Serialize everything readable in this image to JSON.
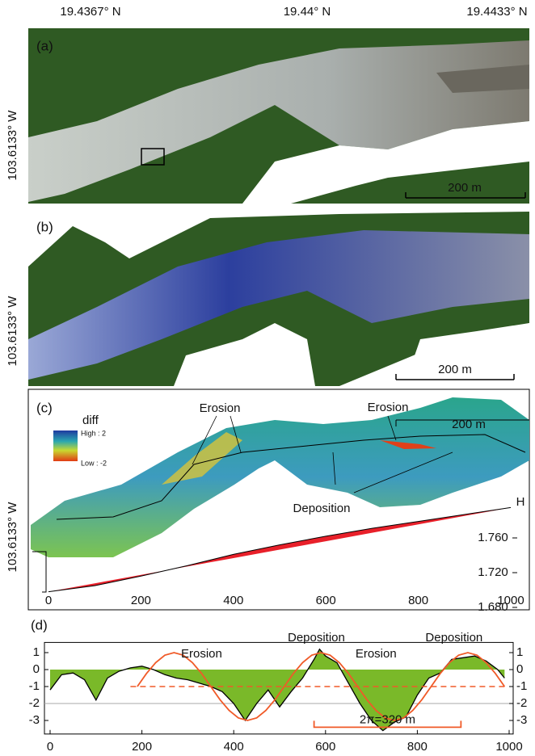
{
  "header": {
    "lat_labels": [
      "19.4367° N",
      "19.44° N",
      "19.4433° N"
    ],
    "lon_label": "103.6133° W"
  },
  "panels": {
    "a": {
      "label": "(a)",
      "scale": "200 m"
    },
    "b": {
      "label": "(b)",
      "scale": "200 m"
    },
    "c": {
      "label": "(c)",
      "scale": "200 m",
      "legend_title": "diff",
      "legend_high": "High : 2",
      "legend_low": "Low : -2",
      "annotations": [
        "Erosion",
        "Erosion",
        "Deposition"
      ],
      "axis_label": "H"
    }
  },
  "chart_data": [
    {
      "type": "line",
      "x": [
        0,
        100,
        200,
        300,
        400,
        500,
        600,
        700,
        800,
        900,
        1000
      ],
      "profile": [
        1.698,
        1.705,
        1.716,
        1.728,
        1.741,
        1.752,
        1.762,
        1.771,
        1.779,
        1.787,
        1.795
      ],
      "trend": [
        1.698,
        1.7077,
        1.7174,
        1.7271,
        1.7368,
        1.7465,
        1.7562,
        1.7659,
        1.7756,
        1.7853,
        1.795
      ],
      "line_color": "#000000",
      "fill_color": "#e8202a",
      "xlim": [
        0,
        1000
      ],
      "xticks": [
        0,
        200,
        400,
        600,
        800,
        1000
      ],
      "ylim": [
        1.68,
        1.8
      ],
      "yticks": [
        {
          "value": 1.68,
          "label": "1.680"
        },
        {
          "value": 1.72,
          "label": "1.720"
        },
        {
          "value": 1.76,
          "label": "1.760"
        }
      ]
    },
    {
      "type": "area",
      "title": "(d)",
      "x": [
        0,
        25,
        50,
        75,
        100,
        125,
        150,
        175,
        200,
        225,
        250,
        275,
        300,
        325,
        350,
        375,
        400,
        425,
        450,
        475,
        500,
        525,
        550,
        575,
        587,
        600,
        625,
        650,
        675,
        700,
        725,
        750,
        775,
        800,
        825,
        850,
        875,
        900,
        925,
        950,
        975,
        990
      ],
      "values": [
        -1.2,
        -0.3,
        -0.2,
        -0.6,
        -1.8,
        -0.5,
        -0.1,
        0.1,
        0.2,
        0,
        -0.3,
        -0.5,
        -0.6,
        -0.8,
        -1.0,
        -1.3,
        -2.0,
        -3.0,
        -2.0,
        -1.2,
        -2.2,
        -1.3,
        -0.5,
        0.6,
        1.2,
        0.8,
        0.4,
        -0.8,
        -2.0,
        -3.0,
        -3.6,
        -3.1,
        -2.8,
        -1.5,
        -0.5,
        -0.2,
        0.6,
        0.7,
        0.8,
        0.5,
        0,
        -0.5
      ],
      "fill_color": "#7ab929",
      "line_color": "#000000",
      "sine_x": [
        190,
        210,
        230,
        250,
        270,
        290,
        310,
        330,
        350,
        370,
        390,
        410,
        430,
        450,
        470,
        490,
        510,
        530,
        550,
        570,
        590,
        610,
        630,
        650,
        670,
        690,
        710,
        730,
        750,
        770,
        790,
        810,
        830,
        850,
        870,
        890,
        910,
        930,
        950,
        970,
        990
      ],
      "sine": [
        -1,
        -0.23,
        0.41,
        0.85,
        1,
        0.85,
        0.41,
        -0.23,
        -1,
        -1.77,
        -2.41,
        -2.85,
        -3,
        -2.85,
        -2.41,
        -1.77,
        -1,
        -0.23,
        0.41,
        0.85,
        1,
        0.85,
        0.41,
        -0.23,
        -1,
        -1.77,
        -2.41,
        -2.85,
        -3,
        -2.85,
        -2.41,
        -1.77,
        -1,
        -0.23,
        0.41,
        0.85,
        1,
        0.85,
        0.41,
        -0.23,
        -1
      ],
      "sine_color": "#f05a28",
      "mean_line": -1,
      "mean_range": [
        175,
        990
      ],
      "wavelength_label": "2π=320 m",
      "wavelength_range": [
        575,
        895
      ],
      "wavelength_level": -3.4,
      "annotations": [
        {
          "text": "Erosion",
          "x": 330,
          "y": 0.9
        },
        {
          "text": "Deposition",
          "x": 580,
          "y": 1.85
        },
        {
          "text": "Erosion",
          "x": 710,
          "y": 0.9
        },
        {
          "text": "Deposition",
          "x": 880,
          "y": 1.85
        }
      ],
      "xlim": [
        0,
        1000
      ],
      "xticks": [
        0,
        200,
        400,
        600,
        800,
        1000
      ],
      "ylim": [
        -3.8,
        1.6
      ],
      "yticks": [
        -3,
        -2,
        -1,
        0,
        1
      ],
      "y2lim": [
        -3.8,
        1.6
      ],
      "y2ticks": [
        -3,
        -2,
        -1,
        0,
        1
      ]
    }
  ]
}
